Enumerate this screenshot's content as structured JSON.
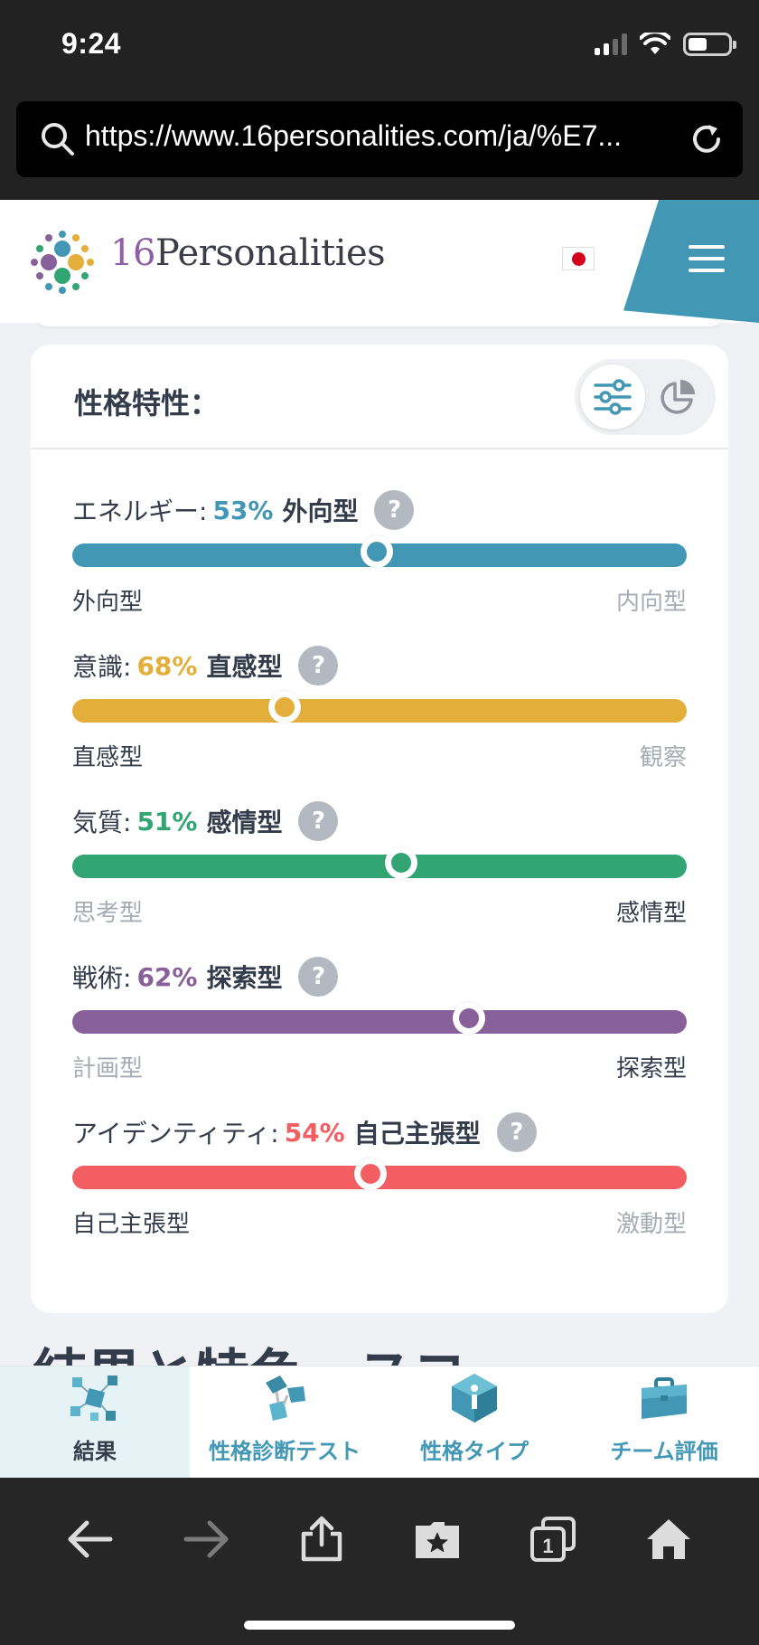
{
  "status_bar": {
    "time": "9:24"
  },
  "browser": {
    "url": "https://www.16personalities.com/ja/%E7..."
  },
  "site": {
    "brand_number": "16",
    "brand_name": "Personalities"
  },
  "card": {
    "title": "性格特性：",
    "traits": [
      {
        "label": "エネルギー:",
        "percent": "53%",
        "percent_value": 53,
        "type": "外向型",
        "left_pole": "外向型",
        "right_pole": "内向型",
        "active_side": "left",
        "color": "#4298b4",
        "knob_position": 0.495
      },
      {
        "label": "意識:",
        "percent": "68%",
        "percent_value": 68,
        "type": "直感型",
        "left_pole": "直感型",
        "right_pole": "観察",
        "active_side": "left",
        "color": "#e4ae3a",
        "knob_position": 0.345
      },
      {
        "label": "気質:",
        "percent": "51%",
        "percent_value": 51,
        "type": "感情型",
        "left_pole": "思考型",
        "right_pole": "感情型",
        "active_side": "right",
        "color": "#33a474",
        "knob_position": 0.535
      },
      {
        "label": "戦術:",
        "percent": "62%",
        "percent_value": 62,
        "type": "探索型",
        "left_pole": "計画型",
        "right_pole": "探索型",
        "active_side": "right",
        "color": "#88619a",
        "knob_position": 0.645
      },
      {
        "label": "アイデンティティ:",
        "percent": "54%",
        "percent_value": 54,
        "type": "自己主張型",
        "left_pole": "自己主張型",
        "right_pole": "激動型",
        "active_side": "left",
        "color": "#f25e62",
        "knob_position": 0.485
      }
    ],
    "help_glyph": "?"
  },
  "tabs": [
    {
      "label": "結果",
      "icon": "results-cubes-icon",
      "active": true
    },
    {
      "label": "性格診断テスト",
      "icon": "test-links-icon",
      "active": false
    },
    {
      "label": "性格タイプ",
      "icon": "types-gem-icon",
      "active": false
    },
    {
      "label": "チーム評価",
      "icon": "teams-briefcase-icon",
      "active": false
    }
  ],
  "toolbar_icons": [
    "back-arrow-icon",
    "forward-arrow-icon",
    "share-icon",
    "bookmarks-icon",
    "tabs-icon",
    "home-icon"
  ],
  "tabs_count": "1",
  "colors": {
    "brand_teal": "#4298b4",
    "text_dark": "#343c4b",
    "text_muted": "#a6abb4"
  }
}
